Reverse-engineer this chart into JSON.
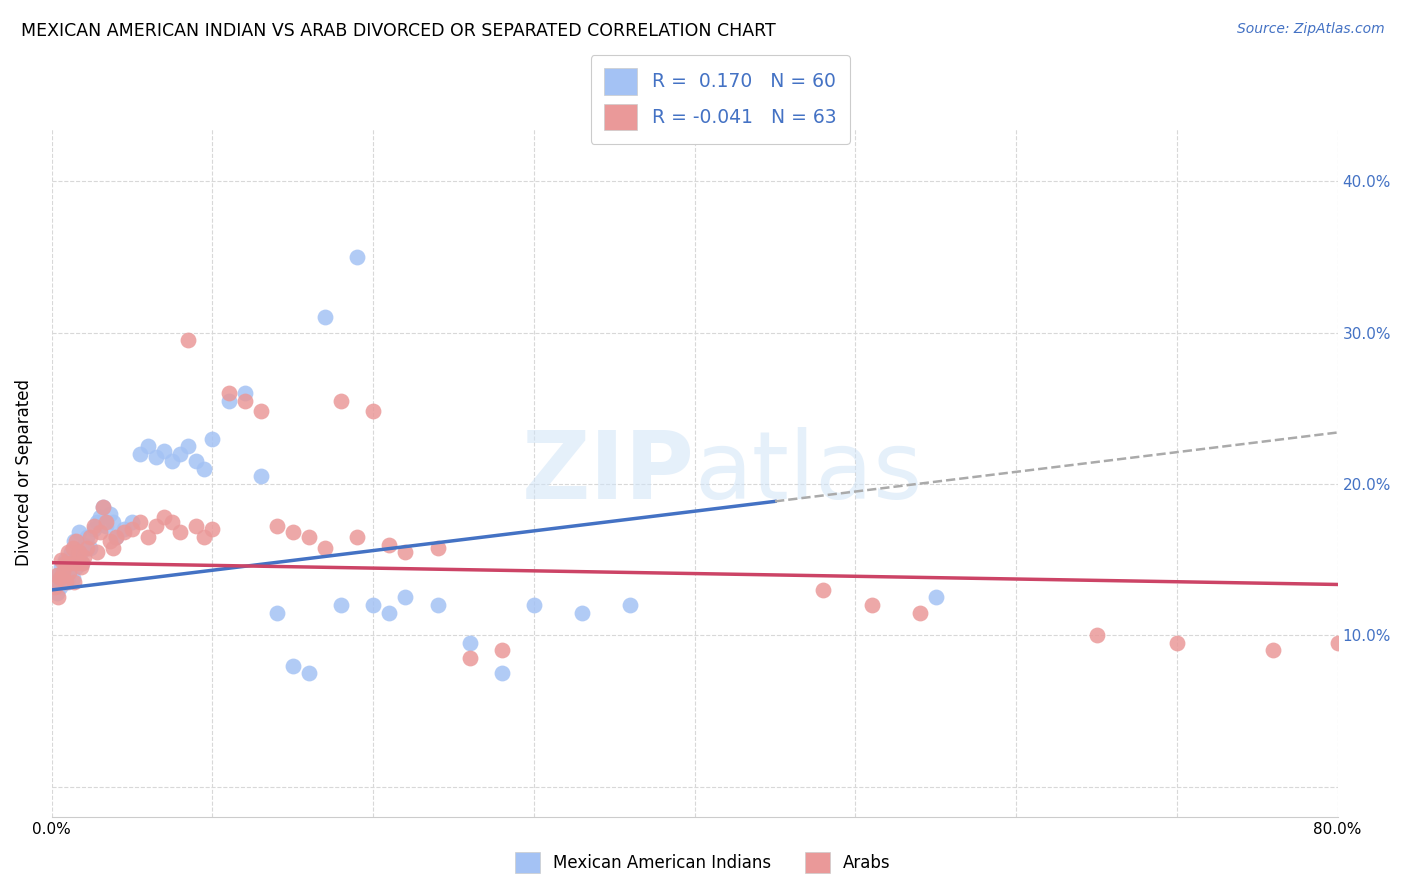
{
  "title": "MEXICAN AMERICAN INDIAN VS ARAB DIVORCED OR SEPARATED CORRELATION CHART",
  "source": "Source: ZipAtlas.com",
  "ylabel": "Divorced or Separated",
  "xlim": [
    0.0,
    0.8
  ],
  "ylim": [
    -0.02,
    0.43
  ],
  "legend_R1": "0.170",
  "legend_N1": "60",
  "legend_R2": "-0.041",
  "legend_N2": "63",
  "blue_color": "#a4c2f4",
  "pink_color": "#ea9999",
  "line_blue": "#4472c4",
  "line_pink": "#cc4466",
  "line_dashed_color": "#aaaaaa",
  "watermark": "ZIPatlas",
  "blue_x": [
    0.002,
    0.003,
    0.004,
    0.005,
    0.006,
    0.007,
    0.008,
    0.009,
    0.01,
    0.011,
    0.012,
    0.013,
    0.014,
    0.015,
    0.016,
    0.017,
    0.018,
    0.019,
    0.02,
    0.022,
    0.024,
    0.026,
    0.028,
    0.03,
    0.032,
    0.034,
    0.036,
    0.038,
    0.04,
    0.045,
    0.05,
    0.055,
    0.06,
    0.065,
    0.07,
    0.075,
    0.08,
    0.085,
    0.09,
    0.095,
    0.1,
    0.11,
    0.12,
    0.13,
    0.14,
    0.15,
    0.16,
    0.17,
    0.18,
    0.19,
    0.2,
    0.21,
    0.22,
    0.24,
    0.26,
    0.28,
    0.3,
    0.33,
    0.36,
    0.55
  ],
  "blue_y": [
    0.135,
    0.128,
    0.14,
    0.132,
    0.145,
    0.138,
    0.15,
    0.142,
    0.135,
    0.148,
    0.155,
    0.138,
    0.162,
    0.145,
    0.152,
    0.168,
    0.155,
    0.148,
    0.16,
    0.165,
    0.158,
    0.17,
    0.175,
    0.178,
    0.185,
    0.172,
    0.18,
    0.175,
    0.165,
    0.17,
    0.175,
    0.22,
    0.225,
    0.218,
    0.222,
    0.215,
    0.22,
    0.225,
    0.215,
    0.21,
    0.23,
    0.255,
    0.26,
    0.205,
    0.115,
    0.08,
    0.075,
    0.31,
    0.12,
    0.35,
    0.12,
    0.115,
    0.125,
    0.12,
    0.095,
    0.075,
    0.12,
    0.115,
    0.12,
    0.125
  ],
  "pink_x": [
    0.002,
    0.003,
    0.004,
    0.005,
    0.006,
    0.007,
    0.008,
    0.009,
    0.01,
    0.011,
    0.012,
    0.013,
    0.014,
    0.015,
    0.016,
    0.017,
    0.018,
    0.019,
    0.02,
    0.022,
    0.024,
    0.026,
    0.028,
    0.03,
    0.032,
    0.034,
    0.036,
    0.038,
    0.04,
    0.045,
    0.05,
    0.055,
    0.06,
    0.065,
    0.07,
    0.075,
    0.08,
    0.085,
    0.09,
    0.095,
    0.1,
    0.11,
    0.12,
    0.13,
    0.14,
    0.15,
    0.16,
    0.17,
    0.18,
    0.19,
    0.2,
    0.21,
    0.22,
    0.24,
    0.26,
    0.28,
    0.48,
    0.51,
    0.54,
    0.65,
    0.7,
    0.76,
    0.8
  ],
  "pink_y": [
    0.132,
    0.14,
    0.125,
    0.138,
    0.15,
    0.142,
    0.148,
    0.135,
    0.155,
    0.142,
    0.148,
    0.158,
    0.135,
    0.162,
    0.148,
    0.155,
    0.145,
    0.148,
    0.152,
    0.158,
    0.165,
    0.172,
    0.155,
    0.168,
    0.185,
    0.175,
    0.162,
    0.158,
    0.165,
    0.168,
    0.17,
    0.175,
    0.165,
    0.172,
    0.178,
    0.175,
    0.168,
    0.295,
    0.172,
    0.165,
    0.17,
    0.26,
    0.255,
    0.248,
    0.172,
    0.168,
    0.165,
    0.158,
    0.255,
    0.165,
    0.248,
    0.16,
    0.155,
    0.158,
    0.085,
    0.09,
    0.13,
    0.12,
    0.115,
    0.1,
    0.095,
    0.09,
    0.095
  ]
}
